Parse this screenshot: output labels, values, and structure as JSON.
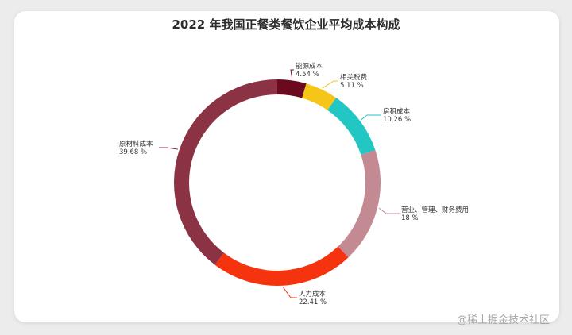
{
  "chart_data": {
    "type": "pie",
    "variant": "donut",
    "title": "2022 年我国正餐类餐饮企业平均成本构成",
    "unit": "%",
    "slices": [
      {
        "label": "能源成本",
        "value": 4.54,
        "display": "4.54 %",
        "color": "#6b0a1e"
      },
      {
        "label": "相关税费",
        "value": 5.11,
        "display": "5.11 %",
        "color": "#f5c518"
      },
      {
        "label": "房租成本",
        "value": 10.26,
        "display": "10.26 %",
        "color": "#22c7c4"
      },
      {
        "label": "营业、管理、财务费用",
        "value": 18,
        "display": "18 %",
        "color": "#c38a94"
      },
      {
        "label": "人力成本",
        "value": 22.41,
        "display": "22.41 %",
        "color": "#f5330e"
      },
      {
        "label": "原材料成本",
        "value": 39.68,
        "display": "39.68 %",
        "color": "#8b3245"
      }
    ]
  },
  "watermark": "@稀土掘金技术社区"
}
